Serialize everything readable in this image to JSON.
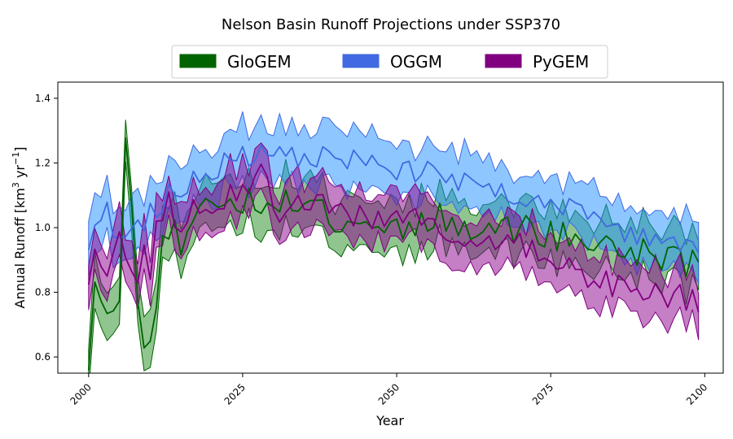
{
  "chart_data": {
    "type": "area",
    "title": "Nelson Basin Runoff Projections under SSP370",
    "xlabel": "Year",
    "ylabel": {
      "base": "Annual Runoff [km",
      "sup1": "3",
      "mid": " yr",
      "sup2": "−1",
      "end": "]"
    },
    "xlim": [
      1995,
      2103
    ],
    "ylim": [
      0.55,
      1.45
    ],
    "xticks": [
      2000,
      2025,
      2050,
      2075,
      2100
    ],
    "yticks": [
      0.6,
      0.8,
      1.0,
      1.2,
      1.4
    ],
    "ytick_labels": [
      "0.6",
      "0.8",
      "1.0",
      "1.2",
      "1.4"
    ],
    "legend_position": "top-center",
    "x_start": 2000,
    "x_end": 2099,
    "series": [
      {
        "name": "GloGEM",
        "line_color": "#006400",
        "fill_color": "#228B22",
        "anchors": [
          [
            2000,
            0.6
          ],
          [
            2001,
            0.9
          ],
          [
            2003,
            0.78
          ],
          [
            2005,
            0.75
          ],
          [
            2006,
            1.25
          ],
          [
            2008,
            0.8
          ],
          [
            2010,
            0.6
          ],
          [
            2012,
            1.05
          ],
          [
            2015,
            0.95
          ],
          [
            2020,
            1.1
          ],
          [
            2025,
            1.08
          ],
          [
            2030,
            1.05
          ],
          [
            2035,
            1.1
          ],
          [
            2040,
            1.03
          ],
          [
            2045,
            1.02
          ],
          [
            2050,
            1.0
          ],
          [
            2055,
            1.03
          ],
          [
            2060,
            1.02
          ],
          [
            2065,
            1.0
          ],
          [
            2070,
            1.0
          ],
          [
            2075,
            0.98
          ],
          [
            2080,
            0.96
          ],
          [
            2085,
            0.94
          ],
          [
            2090,
            0.92
          ],
          [
            2095,
            0.91
          ],
          [
            2099,
            0.88
          ]
        ],
        "band": [
          0.06,
          0.05
        ],
        "noise": 0.05,
        "seed": 11
      },
      {
        "name": "OGGM",
        "line_color": "#4169E1",
        "fill_color": "#1E90FF",
        "anchors": [
          [
            2000,
            0.96
          ],
          [
            2002,
            1.05
          ],
          [
            2005,
            1.0
          ],
          [
            2008,
            1.0
          ],
          [
            2012,
            1.07
          ],
          [
            2015,
            1.12
          ],
          [
            2020,
            1.18
          ],
          [
            2025,
            1.22
          ],
          [
            2030,
            1.22
          ],
          [
            2035,
            1.22
          ],
          [
            2040,
            1.22
          ],
          [
            2045,
            1.2
          ],
          [
            2050,
            1.18
          ],
          [
            2055,
            1.17
          ],
          [
            2060,
            1.14
          ],
          [
            2065,
            1.12
          ],
          [
            2070,
            1.1
          ],
          [
            2075,
            1.08
          ],
          [
            2080,
            1.04
          ],
          [
            2085,
            1.0
          ],
          [
            2090,
            0.97
          ],
          [
            2095,
            0.95
          ],
          [
            2099,
            0.95
          ]
        ],
        "band": [
          0.07,
          0.06
        ],
        "noise": 0.035,
        "seed": 23
      },
      {
        "name": "PyGEM",
        "line_color": "#800080",
        "fill_color": "#8B008B",
        "anchors": [
          [
            2000,
            0.86
          ],
          [
            2001,
            1.0
          ],
          [
            2003,
            0.82
          ],
          [
            2005,
            0.95
          ],
          [
            2008,
            0.85
          ],
          [
            2010,
            0.9
          ],
          [
            2012,
            1.05
          ],
          [
            2015,
            1.02
          ],
          [
            2020,
            1.08
          ],
          [
            2025,
            1.1
          ],
          [
            2028,
            1.2
          ],
          [
            2030,
            1.05
          ],
          [
            2035,
            1.08
          ],
          [
            2040,
            1.05
          ],
          [
            2045,
            1.04
          ],
          [
            2050,
            1.02
          ],
          [
            2055,
            1.01
          ],
          [
            2060,
            0.98
          ],
          [
            2065,
            0.96
          ],
          [
            2070,
            0.94
          ],
          [
            2075,
            0.9
          ],
          [
            2080,
            0.86
          ],
          [
            2085,
            0.83
          ],
          [
            2090,
            0.81
          ],
          [
            2095,
            0.79
          ],
          [
            2099,
            0.77
          ]
        ],
        "band": [
          0.06,
          0.05
        ],
        "noise": 0.045,
        "seed": 37
      }
    ]
  }
}
